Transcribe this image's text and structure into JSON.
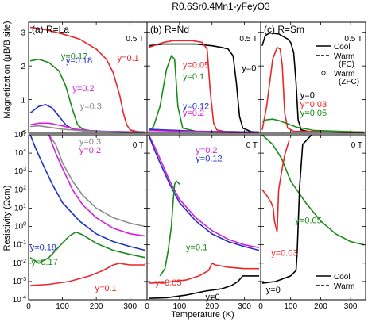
{
  "figure_title": "R0.6Sr0.4Mn1-yFeyO3",
  "chart_data": [
    {
      "type": "line",
      "title": "(a) R=La",
      "field": "0.5 T",
      "quantity": "magnetization",
      "ylabel": "Magnetization (μB/B site)",
      "xlim": [
        0,
        350
      ],
      "ylim": [
        0,
        3.3
      ],
      "x_ticks": [
        0,
        100,
        200,
        300
      ],
      "y_ticks": [
        0,
        1,
        2,
        3
      ],
      "series": [
        {
          "name": "y=0.1",
          "color": "#e8262b",
          "style": "solid",
          "x": [
            5,
            50,
            100,
            150,
            200,
            230,
            250,
            270,
            280,
            290,
            300,
            320,
            345
          ],
          "y": [
            3.15,
            3.08,
            2.95,
            2.8,
            2.5,
            2.2,
            1.8,
            1.1,
            0.6,
            0.25,
            0.1,
            0.05,
            0.03
          ]
        },
        {
          "name": "y=0.17",
          "color": "#1a8a1a",
          "style": "solid",
          "x": [
            5,
            30,
            60,
            90,
            110,
            130,
            145,
            160,
            180,
            220,
            345
          ],
          "y": [
            2.15,
            2.2,
            2.1,
            1.85,
            1.4,
            0.7,
            0.25,
            0.12,
            0.08,
            0.05,
            0.03
          ]
        },
        {
          "name": "y=0.18",
          "color": "#1f2fc8",
          "style": "solid",
          "x": [
            5,
            30,
            50,
            70,
            90,
            110,
            130,
            160,
            345
          ],
          "y": [
            0.6,
            0.8,
            0.85,
            0.75,
            0.5,
            0.25,
            0.12,
            0.07,
            0.03
          ]
        },
        {
          "name": "y=0.2",
          "color": "#d41fd4",
          "style": "solid",
          "x": [
            5,
            30,
            60,
            100,
            140,
            200,
            345
          ],
          "y": [
            0.25,
            0.3,
            0.3,
            0.22,
            0.12,
            0.06,
            0.03
          ]
        },
        {
          "name": "y=0.3",
          "color": "#8a8a8a",
          "style": "solid",
          "x": [
            5,
            30,
            60,
            100,
            150,
            200,
            345
          ],
          "y": [
            0.2,
            0.22,
            0.18,
            0.12,
            0.08,
            0.05,
            0.02
          ]
        }
      ],
      "labels": [
        {
          "text": "y=0.1",
          "color": "#e8262b",
          "x": 262,
          "y": 2.15
        },
        {
          "text": "y=0.17",
          "color": "#1a8a1a",
          "x": 96,
          "y": 2.2
        },
        {
          "text": "y=0.18",
          "color": "#1f2fc8",
          "x": 110,
          "y": 2.08
        },
        {
          "text": "y=0.2",
          "color": "#d41fd4",
          "x": 130,
          "y": 1.25
        },
        {
          "text": "y=0.3",
          "color": "#8a8a8a",
          "x": 152,
          "y": 0.72
        }
      ]
    },
    {
      "type": "line",
      "title": "(b) R=Nd",
      "field": "0.5 T",
      "quantity": "magnetization",
      "xlim": [
        0,
        350
      ],
      "ylim": [
        0,
        3.3
      ],
      "x_ticks": [
        0,
        100,
        200,
        300
      ],
      "y_ticks": [
        0,
        1,
        2,
        3
      ],
      "series": [
        {
          "name": "y=0",
          "color": "#000000",
          "style": "solid",
          "x": [
            5,
            50,
            100,
            150,
            200,
            230,
            250,
            265,
            275,
            285,
            295,
            320,
            345
          ],
          "y": [
            2.6,
            2.65,
            2.65,
            2.65,
            2.6,
            2.55,
            2.5,
            2.3,
            1.5,
            0.5,
            0.15,
            0.05,
            0.03
          ]
        },
        {
          "name": "y=0.05",
          "color": "#e8262b",
          "style": "solid",
          "x": [
            5,
            50,
            80,
            100,
            140,
            170,
            185,
            195,
            205,
            215,
            240,
            345
          ],
          "y": [
            2.55,
            2.7,
            2.75,
            2.75,
            2.75,
            2.7,
            2.5,
            1.2,
            0.3,
            0.1,
            0.05,
            0.03
          ]
        },
        {
          "name": "y=0.1",
          "color": "#1a8a1a",
          "style": "solid",
          "x": [
            5,
            20,
            40,
            60,
            75,
            85,
            95,
            110,
            150,
            345
          ],
          "y": [
            0.05,
            0.2,
            0.8,
            1.9,
            2.3,
            2.2,
            0.8,
            0.15,
            0.06,
            0.03
          ]
        },
        {
          "name": "y=0.12",
          "color": "#1f2fc8",
          "style": "solid",
          "x": [
            5,
            50,
            100,
            150,
            200,
            345
          ],
          "y": [
            0.12,
            0.1,
            0.08,
            0.06,
            0.05,
            0.03
          ]
        },
        {
          "name": "y=0.2",
          "color": "#d41fd4",
          "style": "solid",
          "x": [
            5,
            50,
            100,
            150,
            200,
            345
          ],
          "y": [
            0.08,
            0.07,
            0.06,
            0.05,
            0.04,
            0.02
          ]
        }
      ],
      "labels": [
        {
          "text": "y=0",
          "color": "#000000",
          "x": 292,
          "y": 1.85
        },
        {
          "text": "y=0.05",
          "color": "#e8262b",
          "x": 110,
          "y": 1.95
        },
        {
          "text": "y=0.1",
          "color": "#1a8a1a",
          "x": 110,
          "y": 1.6
        },
        {
          "text": "y=0.12",
          "color": "#1f2fc8",
          "x": 110,
          "y": 0.72
        },
        {
          "text": "y=0.2",
          "color": "#d41fd4",
          "x": 110,
          "y": 0.52
        }
      ]
    },
    {
      "type": "line",
      "title": "(c) R=Sm",
      "field": "0.5 T",
      "quantity": "magnetization",
      "xlim": [
        0,
        350
      ],
      "ylim": [
        0,
        3.3
      ],
      "x_ticks": [
        0,
        100,
        200,
        300
      ],
      "y_ticks": [
        0,
        1,
        2,
        3
      ],
      "legend": {
        "position": "top-right",
        "entries": [
          "Cool",
          "Warm (FC)",
          "Warm (ZFC)"
        ]
      },
      "series": [
        {
          "name": "y=0",
          "color": "#000000",
          "style": "solid",
          "x": [
            5,
            15,
            30,
            60,
            90,
            100,
            110,
            118,
            125,
            135,
            160,
            345
          ],
          "y": [
            2.6,
            2.9,
            2.98,
            2.95,
            2.8,
            2.7,
            2.4,
            1.5,
            0.4,
            0.1,
            0.05,
            0.03
          ]
        },
        {
          "name": "y=0.03",
          "color": "#e8262b",
          "style": "solid",
          "x": [
            5,
            20,
            40,
            55,
            65,
            72,
            80,
            90,
            110,
            345
          ],
          "y": [
            0.1,
            0.8,
            2.2,
            2.55,
            2.5,
            2.0,
            0.6,
            0.15,
            0.06,
            0.03
          ]
        },
        {
          "name": "y=0.05",
          "color": "#1a8a1a",
          "style": "solid",
          "x": [
            5,
            20,
            40,
            60,
            90,
            120,
            180,
            345
          ],
          "y": [
            0.35,
            0.4,
            0.42,
            0.38,
            0.28,
            0.18,
            0.08,
            0.03
          ]
        }
      ],
      "labels": [
        {
          "text": "y=0",
          "color": "#000000",
          "x": 132,
          "y": 1.05
        },
        {
          "text": "y=0.03",
          "color": "#e8262b",
          "x": 132,
          "y": 0.78
        },
        {
          "text": "y=0.05",
          "color": "#1a8a1a",
          "x": 132,
          "y": 0.52
        }
      ],
      "legend_labels": [
        "Cool",
        "Warm",
        "(FC)",
        "Warm",
        "(ZFC)"
      ]
    },
    {
      "type": "line",
      "title": "",
      "field": "0 T",
      "quantity": "resistivity",
      "ylabel": "Resistivity (Ωcm)",
      "xlabel": "",
      "xlim": [
        0,
        350
      ],
      "ylim_log10": [
        -4,
        5
      ],
      "x_ticks": [
        0,
        100,
        200,
        300
      ],
      "y_ticks_log10": [
        -4,
        -3,
        -2,
        -1,
        0,
        1,
        2,
        3,
        4,
        5
      ],
      "series": [
        {
          "name": "y=0.3",
          "color": "#8a8a8a",
          "style": "solid",
          "x": [
            60,
            80,
            100,
            130,
            160,
            200,
            250,
            300,
            345
          ],
          "y": [
            100000,
            30000,
            3000,
            300,
            50,
            10,
            3,
            1.5,
            1
          ]
        },
        {
          "name": "y=0.2",
          "color": "#d41fd4",
          "style": "solid",
          "x": [
            60,
            80,
            100,
            130,
            160,
            200,
            250,
            300,
            345
          ],
          "y": [
            100000,
            10000,
            1500,
            100,
            15,
            3,
            0.8,
            0.4,
            0.3
          ]
        },
        {
          "name": "y=0.18",
          "color": "#1f2fc8",
          "style": "solid",
          "x": [
            5,
            20,
            40,
            70,
            100,
            150,
            200,
            250,
            300,
            345
          ],
          "y": [
            100000,
            20000,
            3000,
            200,
            20,
            2,
            0.4,
            0.15,
            0.08,
            0.05
          ]
        },
        {
          "name": "y=0.17",
          "color": "#1a8a1a",
          "style": "solid",
          "x": [
            5,
            30,
            60,
            90,
            120,
            140,
            160,
            200,
            250,
            300,
            345
          ],
          "y": [
            0.02,
            0.01,
            0.02,
            0.08,
            0.3,
            0.5,
            0.35,
            0.12,
            0.05,
            0.03,
            0.02
          ]
        },
        {
          "name": "y=0.1",
          "color": "#e8262b",
          "style": "solid",
          "x": [
            5,
            60,
            120,
            180,
            220,
            250,
            270,
            280,
            300,
            345
          ],
          "y": [
            0.0006,
            0.0007,
            0.001,
            0.002,
            0.004,
            0.008,
            0.01,
            0.009,
            0.008,
            0.008
          ]
        }
      ],
      "labels": [
        {
          "text": "y=0.3",
          "color": "#8a8a8a",
          "x": 150,
          "y": 30000
        },
        {
          "text": "y=0.2",
          "color": "#d41fd4",
          "x": 150,
          "y": 10000
        },
        {
          "text": "y=0.18",
          "color": "#1f2fc8",
          "x": 4,
          "y": 0.05
        },
        {
          "text": "y=0.17",
          "color": "#1a8a1a",
          "x": 8,
          "y": 0.008
        },
        {
          "text": "y=0.1",
          "color": "#e8262b",
          "x": 196,
          "y": 0.0003
        }
      ]
    },
    {
      "type": "line",
      "title": "",
      "field": "0 T",
      "quantity": "resistivity",
      "xlim": [
        0,
        350
      ],
      "ylim_log10": [
        -4,
        5
      ],
      "x_ticks": [
        0,
        100,
        200,
        300
      ],
      "y_ticks_log10": [
        -4,
        -3,
        -2,
        -1,
        0,
        1,
        2,
        3,
        4,
        5
      ],
      "series": [
        {
          "name": "y=0.2",
          "color": "#d41fd4",
          "style": "solid",
          "x": [
            5,
            20,
            40,
            70,
            100,
            150,
            200,
            250,
            300,
            345
          ],
          "y": [
            100000,
            30000,
            5000,
            300,
            30,
            3,
            0.6,
            0.2,
            0.1,
            0.07
          ]
        },
        {
          "name": "y=0.12",
          "color": "#1f2fc8",
          "style": "solid",
          "x": [
            5,
            20,
            40,
            70,
            100,
            150,
            200,
            250,
            300,
            345
          ],
          "y": [
            100000,
            20000,
            3000,
            200,
            20,
            2,
            0.4,
            0.15,
            0.08,
            0.05
          ]
        },
        {
          "name": "y=0.1",
          "color": "#1a8a1a",
          "style": "solid",
          "x": [
            40,
            55,
            65,
            75,
            80,
            85,
            90,
            95,
            100
          ],
          "y": [
            0.002,
            0.005,
            0.05,
            1,
            20,
            200,
            300,
            250,
            200
          ]
        },
        {
          "name": "y=0.05",
          "color": "#e8262b",
          "style": "solid",
          "x": [
            5,
            60,
            120,
            160,
            190,
            200,
            210,
            250,
            300,
            345
          ],
          "y": [
            0.0008,
            0.0009,
            0.0012,
            0.002,
            0.004,
            0.01,
            0.008,
            0.006,
            0.005,
            0.005
          ]
        },
        {
          "name": "y=0",
          "color": "#000000",
          "style": "solid",
          "x": [
            5,
            60,
            120,
            180,
            230,
            260,
            280,
            295,
            310,
            345
          ],
          "y": [
            0.00012,
            0.00013,
            0.00018,
            0.0003,
            0.0004,
            0.0006,
            0.001,
            0.002,
            0.002,
            0.002
          ]
        }
      ],
      "labels": [
        {
          "text": "y=0.2",
          "color": "#d41fd4",
          "x": 150,
          "y": 10000
        },
        {
          "text": "y=0.12",
          "color": "#1f2fc8",
          "x": 150,
          "y": 3500
        },
        {
          "text": "y=0.1",
          "color": "#1a8a1a",
          "x": 120,
          "y": 0.05
        },
        {
          "text": "y=0.05",
          "color": "#e8262b",
          "x": 25,
          "y": 0.0006
        },
        {
          "text": "y=0",
          "color": "#000000",
          "x": 180,
          "y": 8e-05
        }
      ]
    },
    {
      "type": "line",
      "title": "",
      "field": "0 T",
      "quantity": "resistivity",
      "xlim": [
        0,
        350
      ],
      "ylim_log10": [
        -4,
        5
      ],
      "x_ticks": [
        0,
        100,
        200,
        300
      ],
      "y_ticks_log10": [
        -4,
        -3,
        -2,
        -1,
        0,
        1,
        2,
        3,
        4,
        5
      ],
      "legend": {
        "position": "bottom-right",
        "entries": [
          "Cool",
          "Warm"
        ]
      },
      "series": [
        {
          "name": "y=0.05",
          "color": "#1a8a1a",
          "style": "solid",
          "x": [
            5,
            40,
            70,
            100,
            150,
            200,
            250,
            300,
            345
          ],
          "y": [
            100000,
            30000,
            5000,
            300,
            20,
            2,
            0.4,
            0.15,
            0.1
          ]
        },
        {
          "name": "y=0.03",
          "color": "#e8262b",
          "style": "solid",
          "x": [
            5,
            20,
            35,
            42,
            46,
            50,
            55,
            60,
            70,
            80,
            95
          ],
          "y": [
            100,
            50,
            20,
            10,
            2,
            1,
            0.5,
            100,
            1000,
            8000,
            50000
          ]
        },
        {
          "name": "y=0",
          "color": "#000000",
          "style": "solid",
          "x": [
            5,
            50,
            100,
            118,
            122,
            126,
            130,
            140,
            170
          ],
          "y": [
            0.0008,
            0.001,
            0.002,
            0.004,
            0.05,
            3,
            150,
            30000,
            100000
          ]
        }
      ],
      "labels": [
        {
          "text": "y=0.05",
          "color": "#1a8a1a",
          "x": 115,
          "y": 1.5
        },
        {
          "text": "y=0.03",
          "color": "#e8262b",
          "x": 35,
          "y": 0.025
        },
        {
          "text": "y=0",
          "color": "#000000",
          "x": 18,
          "y": 0.00025
        }
      ],
      "legend_labels": [
        "Cool",
        "Warm"
      ]
    }
  ],
  "xlabel": "Temperature (K)"
}
